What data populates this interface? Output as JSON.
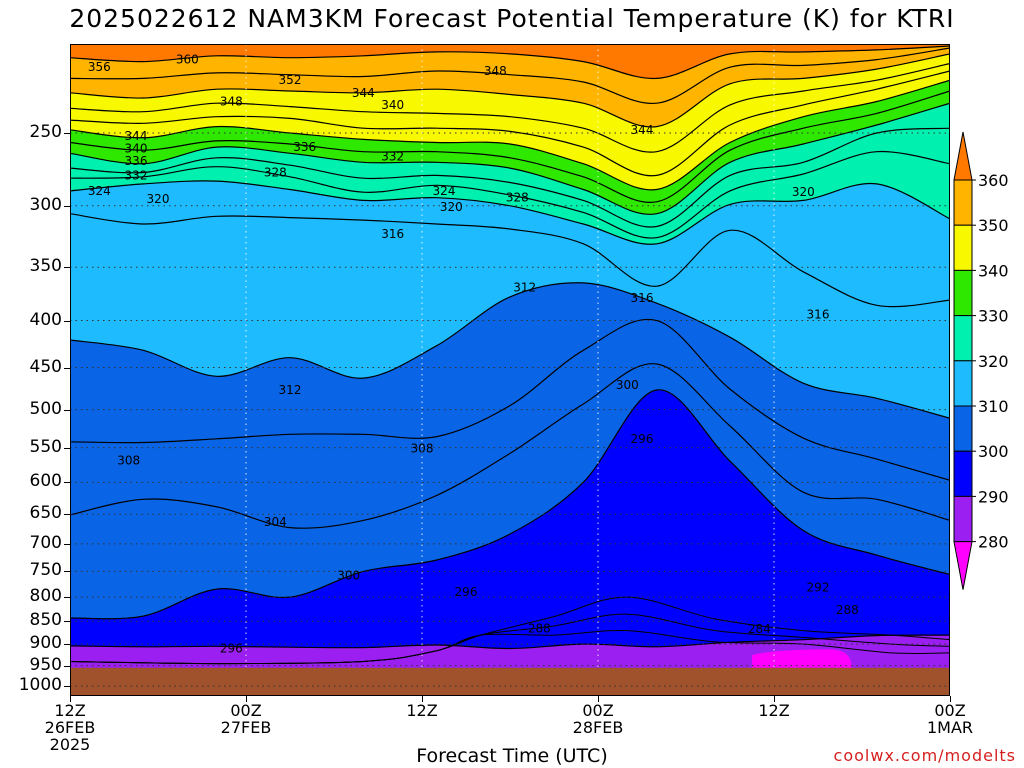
{
  "title": "2025022612 NAM3KM Forecast Potential Temperature (K) for KTRI",
  "credit": "coolwx.com/modelts",
  "chart_data": {
    "type": "contour",
    "variable": "Potential Temperature (K)",
    "model": "NAM3KM",
    "run": "2025022612",
    "station": "KTRI",
    "xlabel": "Forecast Time (UTC)",
    "ylabel": "",
    "x_ticks": [
      {
        "hour": 0,
        "lines": [
          "12Z",
          "26FEB",
          "2025"
        ]
      },
      {
        "hour": 12,
        "lines": [
          "00Z",
          "27FEB"
        ]
      },
      {
        "hour": 24,
        "lines": [
          "12Z"
        ]
      },
      {
        "hour": 36,
        "lines": [
          "00Z",
          "28FEB"
        ]
      },
      {
        "hour": 48,
        "lines": [
          "12Z"
        ]
      },
      {
        "hour": 60,
        "lines": [
          "00Z",
          "1MAR"
        ]
      }
    ],
    "xlim_hours": [
      0,
      60
    ],
    "y_scale": "log",
    "y_ticks": [
      250,
      300,
      350,
      400,
      450,
      500,
      550,
      600,
      650,
      700,
      750,
      800,
      850,
      900,
      950,
      1000
    ],
    "ylim_hPa": [
      200,
      1025
    ],
    "colorbar": {
      "levels": [
        280,
        290,
        300,
        310,
        320,
        330,
        340,
        350,
        360
      ],
      "colors": [
        "#ff00ff",
        "#9a1ff0",
        "#0000ff",
        "#0a64e6",
        "#1ebcff",
        "#00f0b0",
        "#2ee800",
        "#f8f800",
        "#ffb400",
        "#ff7800"
      ]
    },
    "isentropes": [
      {
        "theta": 296,
        "hPa": [
          904,
          906,
          905,
          907,
          908,
          902,
          910,
          900,
          906,
          896,
          890,
          881,
          880
        ]
      },
      {
        "theta": 300,
        "hPa": [
          843,
          839,
          784,
          800,
          750,
          729,
          683,
          600,
          476,
          569,
          677,
          720,
          756
        ]
      },
      {
        "theta": 304,
        "hPa": [
          651,
          626,
          638,
          672,
          660,
          620,
          558,
          493,
          446,
          521,
          615,
          626,
          660
        ]
      },
      {
        "theta": 308,
        "hPa": [
          542,
          543,
          538,
          532,
          532,
          535,
          495,
          431,
          400,
          475,
          537,
          566,
          597
        ]
      },
      {
        "theta": 312,
        "hPa": [
          420,
          431,
          460,
          439,
          462,
          426,
          377,
          364,
          383,
          417,
          468,
          486,
          511
        ]
      },
      {
        "theta": 316,
        "hPa": [
          306,
          314,
          308,
          309,
          311,
          314,
          318,
          330,
          367,
          319,
          354,
          385,
          380
        ]
      },
      {
        "theta": 320,
        "hPa": [
          289,
          284,
          282,
          288,
          296,
          294,
          300,
          314,
          330,
          299,
          296,
          284,
          310
        ]
      },
      {
        "theta": 324,
        "hPa": [
          280,
          279,
          272,
          279,
          290,
          285,
          292,
          305,
          325,
          289,
          277,
          262,
          270
        ]
      },
      {
        "theta": 328,
        "hPa": [
          273,
          276,
          266,
          271,
          280,
          278,
          283,
          296,
          316,
          278,
          269,
          250,
          247
        ]
      },
      {
        "theta": 332,
        "hPa": [
          263,
          270,
          259,
          263,
          269,
          269,
          273,
          288,
          306,
          269,
          257,
          245,
          232
        ]
      },
      {
        "theta": 336,
        "hPa": [
          256,
          261,
          255,
          257,
          262,
          262,
          266,
          279,
          297,
          261,
          247,
          238,
          225
        ]
      },
      {
        "theta": 340,
        "hPa": [
          248,
          253,
          246,
          250,
          254,
          256,
          257,
          270,
          288,
          256,
          240,
          231,
          219
        ]
      },
      {
        "theta": 344,
        "hPa": [
          242,
          244,
          240,
          241,
          247,
          247,
          249,
          259,
          278,
          245,
          233,
          224,
          214
        ]
      },
      {
        "theta": 348,
        "hPa": [
          235,
          237,
          232,
          234,
          237,
          238,
          240,
          247,
          262,
          233,
          225,
          219,
          210
        ]
      },
      {
        "theta": 352,
        "hPa": [
          226,
          229,
          224,
          225,
          226,
          224,
          227,
          232,
          246,
          221,
          218,
          213,
          205
        ]
      },
      {
        "theta": 356,
        "hPa": [
          218,
          218,
          215,
          216,
          217,
          214,
          216,
          220,
          232,
          212,
          211,
          208,
          202
        ]
      },
      {
        "theta": 360,
        "hPa": [
          207,
          209,
          206,
          207,
          206,
          204,
          205,
          209,
          218,
          205,
          204,
          203,
          201
        ]
      }
    ],
    "isentrope_hours": [
      0,
      5,
      10,
      15,
      20,
      25,
      30,
      35,
      40,
      45,
      50,
      55,
      60
    ],
    "contour_labels": [
      {
        "value": "356",
        "hour": 2,
        "hPa": 212
      },
      {
        "value": "360",
        "hour": 8,
        "hPa": 208
      },
      {
        "value": "352",
        "hour": 15,
        "hPa": 219
      },
      {
        "value": "348",
        "hour": 11,
        "hPa": 231
      },
      {
        "value": "344",
        "hour": 20,
        "hPa": 226
      },
      {
        "value": "340",
        "hour": 22,
        "hPa": 233
      },
      {
        "value": "348",
        "hour": 29,
        "hPa": 214
      },
      {
        "value": "344",
        "hour": 4.5,
        "hPa": 252
      },
      {
        "value": "340",
        "hour": 4.5,
        "hPa": 260
      },
      {
        "value": "336",
        "hour": 16,
        "hPa": 259
      },
      {
        "value": "336",
        "hour": 4.5,
        "hPa": 268
      },
      {
        "value": "332",
        "hour": 4.5,
        "hPa": 278
      },
      {
        "value": "332",
        "hour": 22,
        "hPa": 265
      },
      {
        "value": "344",
        "hour": 39,
        "hPa": 248
      },
      {
        "value": "328",
        "hour": 14,
        "hPa": 276
      },
      {
        "value": "324",
        "hour": 2,
        "hPa": 289
      },
      {
        "value": "320",
        "hour": 6,
        "hPa": 295
      },
      {
        "value": "324",
        "hour": 25.5,
        "hPa": 289
      },
      {
        "value": "320",
        "hour": 26,
        "hPa": 301
      },
      {
        "value": "328",
        "hour": 30.5,
        "hPa": 294
      },
      {
        "value": "320",
        "hour": 50,
        "hPa": 290
      },
      {
        "value": "316",
        "hour": 22,
        "hPa": 322
      },
      {
        "value": "312",
        "hour": 31,
        "hPa": 368
      },
      {
        "value": "316",
        "hour": 39,
        "hPa": 378
      },
      {
        "value": "316",
        "hour": 51,
        "hPa": 394
      },
      {
        "value": "312",
        "hour": 15,
        "hPa": 476
      },
      {
        "value": "308",
        "hour": 4,
        "hPa": 568
      },
      {
        "value": "308",
        "hour": 24,
        "hPa": 551
      },
      {
        "value": "300",
        "hour": 38,
        "hPa": 470
      },
      {
        "value": "296",
        "hour": 39,
        "hPa": 538
      },
      {
        "value": "304",
        "hour": 14,
        "hPa": 663
      },
      {
        "value": "300",
        "hour": 19,
        "hPa": 758
      },
      {
        "value": "296",
        "hour": 27,
        "hPa": 790
      },
      {
        "value": "292",
        "hour": 51,
        "hPa": 781
      },
      {
        "value": "288",
        "hour": 53,
        "hPa": 826
      },
      {
        "value": "288",
        "hour": 32,
        "hPa": 865
      },
      {
        "value": "284",
        "hour": 47,
        "hPa": 867
      },
      {
        "value": "296",
        "hour": 11,
        "hPa": 910
      }
    ],
    "surface_hPa": 955,
    "ground_color": "#a0522d"
  }
}
